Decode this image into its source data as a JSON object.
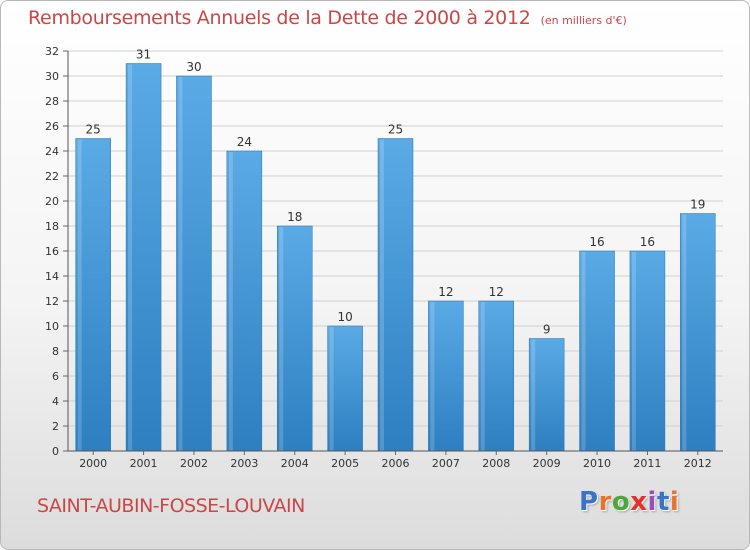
{
  "header": {
    "title": "Remboursements Annuels de la Dette de 2000 à 2012",
    "subtitle": "(en milliers d'€)"
  },
  "footer": {
    "commune": "SAINT-AUBIN-FOSSE-LOUVAIN",
    "brand_text": "Proxiti",
    "brand_colors": [
      "#3a74c7",
      "#e8732c",
      "#4aa838",
      "#e2312f",
      "#9a4fb5",
      "#3a74c7",
      "#e8732c"
    ]
  },
  "colors": {
    "title": "#c94747",
    "bar_light": "#5aaae6",
    "bar_dark": "#2e7fc0"
  },
  "chart_data": {
    "type": "bar",
    "categories": [
      "2000",
      "2001",
      "2002",
      "2003",
      "2004",
      "2005",
      "2006",
      "2007",
      "2008",
      "2009",
      "2010",
      "2011",
      "2012"
    ],
    "values": [
      25,
      31,
      30,
      24,
      18,
      10,
      25,
      12,
      12,
      9,
      16,
      16,
      19
    ],
    "ylim": [
      0,
      32
    ],
    "yticks": [
      0,
      2,
      4,
      6,
      8,
      10,
      12,
      14,
      16,
      18,
      20,
      22,
      24,
      26,
      28,
      30,
      32
    ],
    "grid": true,
    "legend": "none"
  }
}
